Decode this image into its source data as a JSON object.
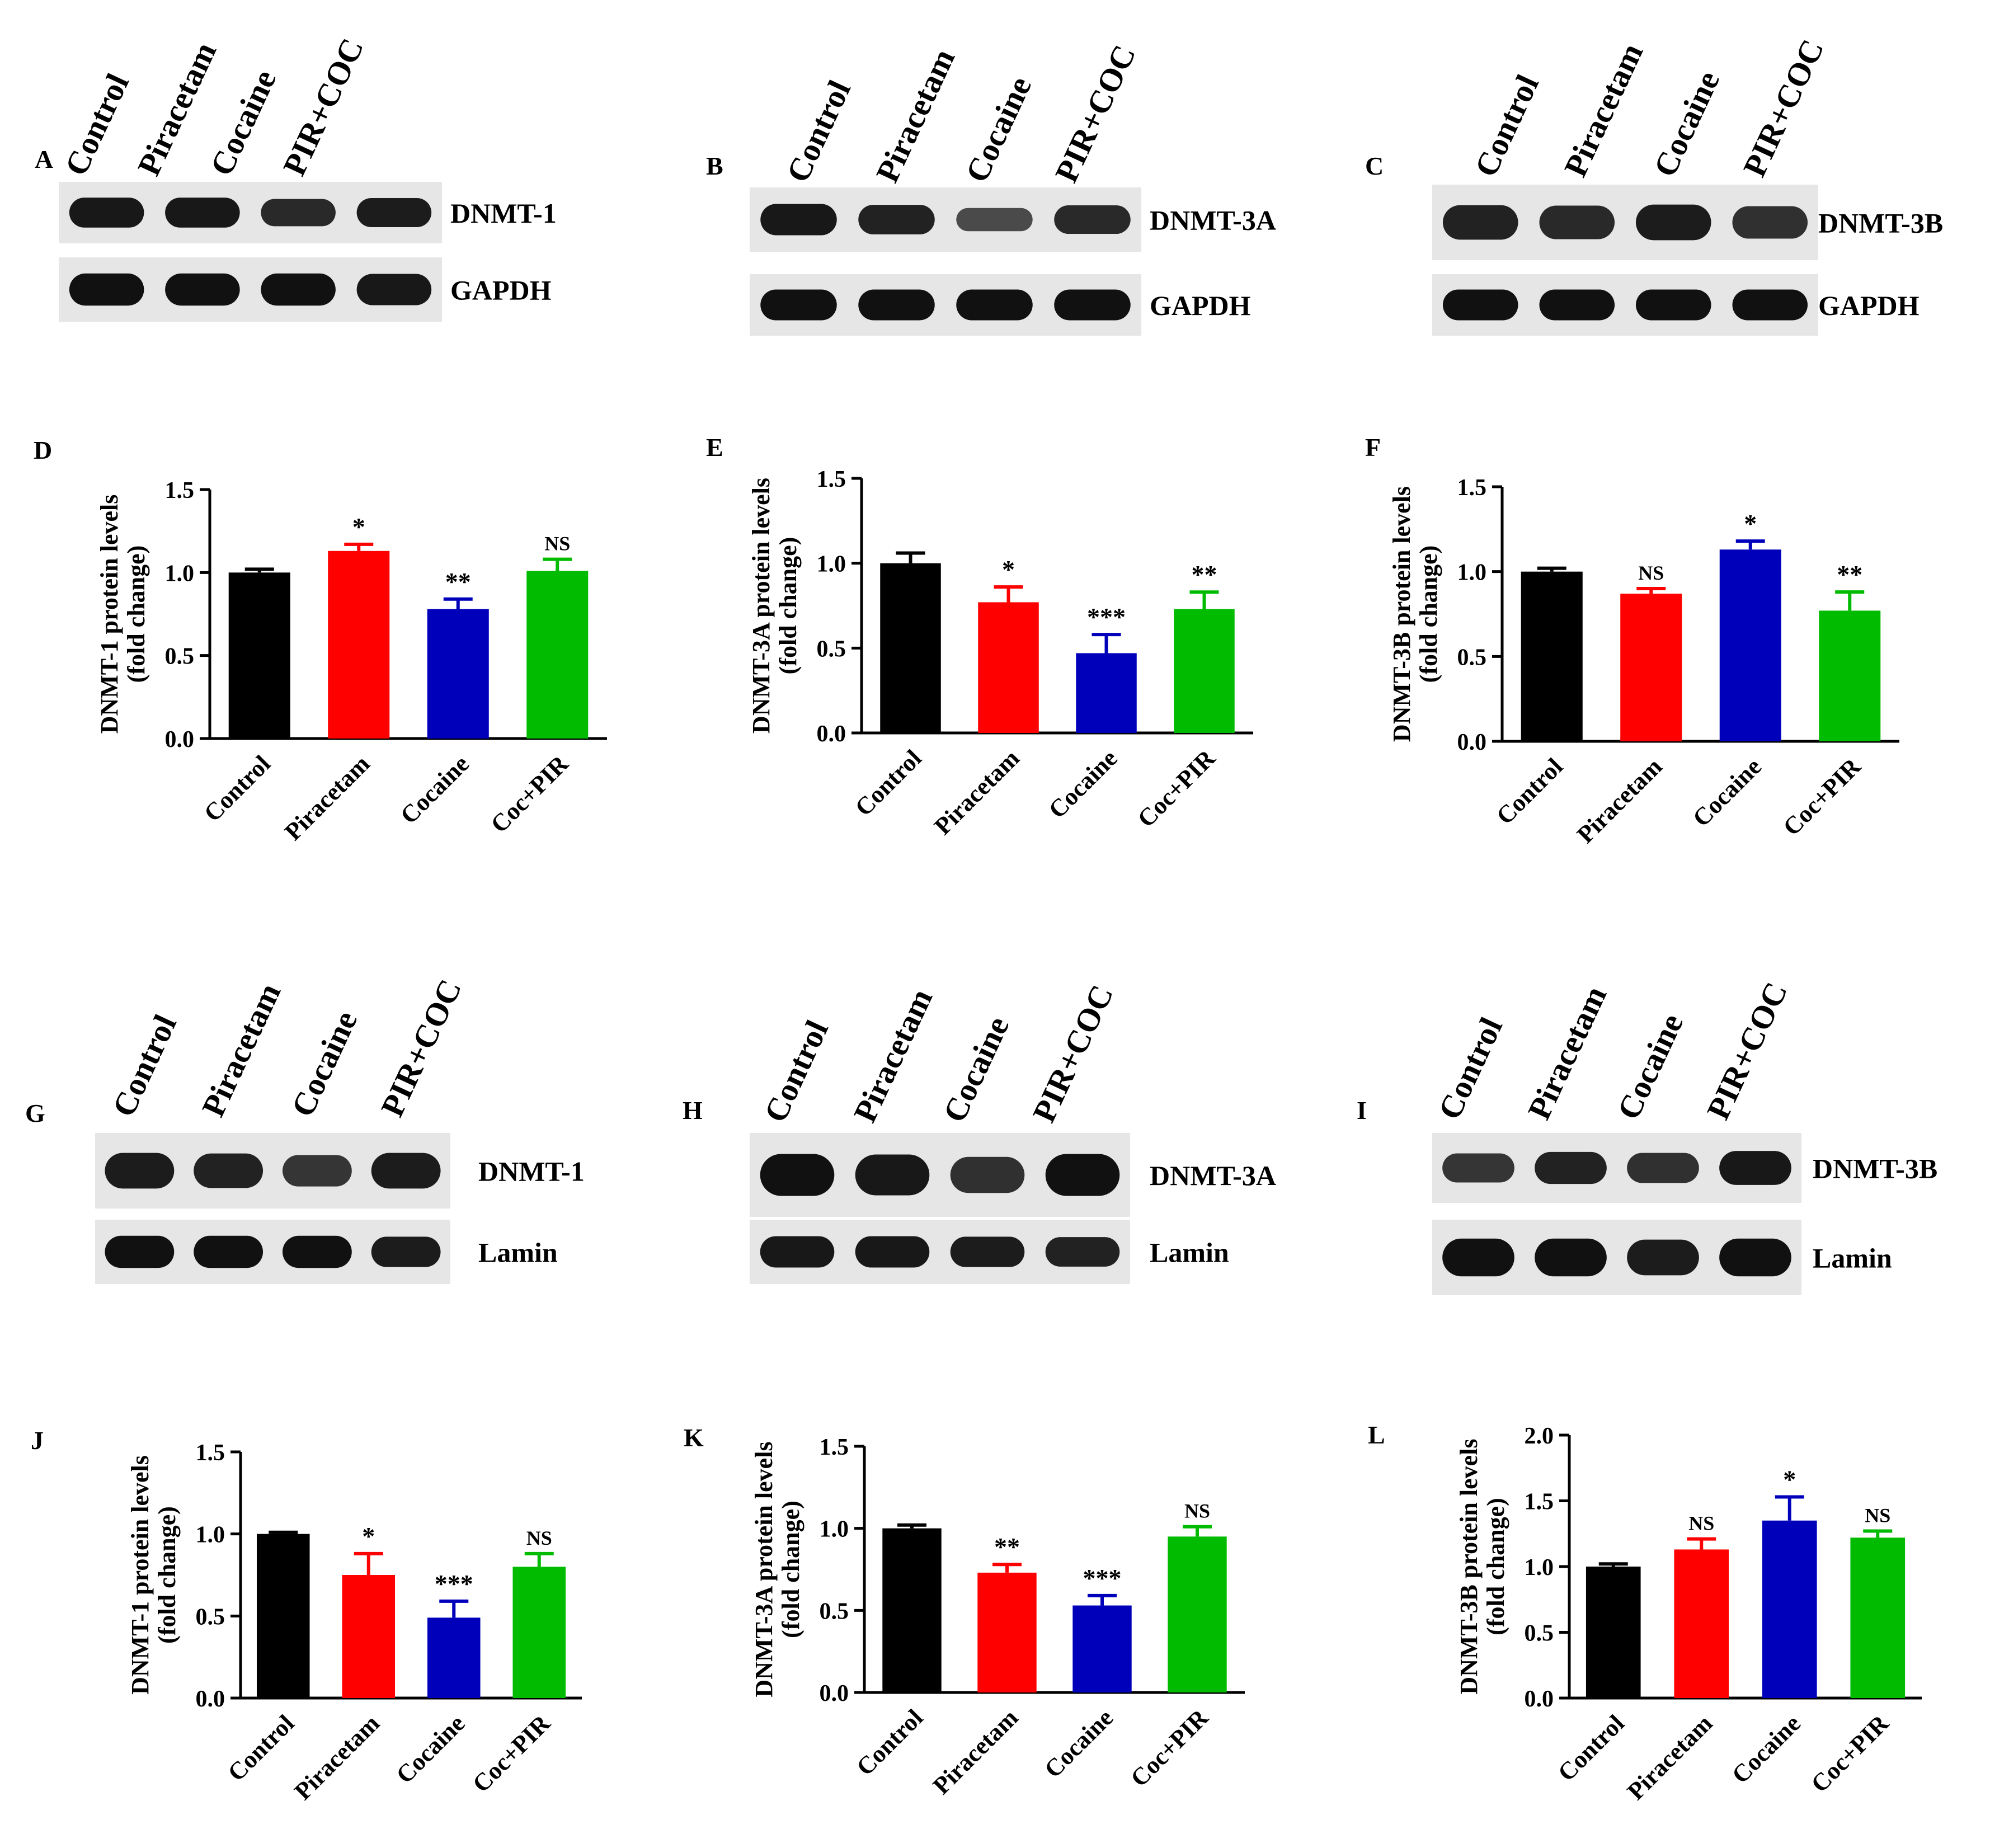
{
  "colors": {
    "control": "#000000",
    "piracetam": "#ff0000",
    "cocaine": "#0000bb",
    "combo": "#00bb00",
    "band": "#111111",
    "membrane": "#e6e6e6"
  },
  "blots": [
    {
      "panel": "A",
      "lanes": [
        "Control",
        "Piracetam",
        "Cocaine",
        "PIR+COC"
      ],
      "rows": [
        {
          "label": "DNMT-1",
          "intensity": [
            0.95,
            0.95,
            0.8,
            0.9
          ]
        },
        {
          "label": "GAPDH",
          "intensity": [
            1.0,
            1.0,
            1.0,
            0.95
          ]
        }
      ]
    },
    {
      "panel": "B",
      "lanes": [
        "Control",
        "Piracetam",
        "Cocaine",
        "PIR+COC"
      ],
      "rows": [
        {
          "label": "DNMT-3A",
          "intensity": [
            0.95,
            0.85,
            0.5,
            0.8
          ]
        },
        {
          "label": "GAPDH",
          "intensity": [
            1.0,
            1.0,
            1.0,
            1.0
          ]
        }
      ]
    },
    {
      "panel": "C",
      "lanes": [
        "Control",
        "Piracetam",
        "Cocaine",
        "PIR+COC"
      ],
      "rows": [
        {
          "label": "DNMT-3B",
          "intensity": [
            0.85,
            0.8,
            0.9,
            0.75
          ]
        },
        {
          "label": "GAPDH",
          "intensity": [
            1.0,
            1.0,
            1.0,
            1.0
          ]
        }
      ]
    },
    {
      "panel": "G",
      "lanes": [
        "Control",
        "Piracetam",
        "Cocaine",
        "PIR+COC"
      ],
      "rows": [
        {
          "label": "DNMT-1",
          "intensity": [
            0.9,
            0.85,
            0.7,
            0.9
          ]
        },
        {
          "label": "Lamin",
          "intensity": [
            1.0,
            1.0,
            1.0,
            0.9
          ]
        }
      ]
    },
    {
      "panel": "H",
      "lanes": [
        "Control",
        "Piracetam",
        "Cocaine",
        "PIR+COC"
      ],
      "rows": [
        {
          "label": "DNMT-3A",
          "intensity": [
            1.0,
            0.95,
            0.75,
            1.0
          ]
        },
        {
          "label": "Lamin",
          "intensity": [
            0.95,
            0.95,
            0.9,
            0.85
          ]
        }
      ]
    },
    {
      "panel": "I",
      "lanes": [
        "Control",
        "Piracetam",
        "Cocaine",
        "PIR+COC"
      ],
      "rows": [
        {
          "label": "DNMT-3B",
          "intensity": [
            0.7,
            0.85,
            0.75,
            0.95
          ]
        },
        {
          "label": "Lamin",
          "intensity": [
            1.0,
            1.0,
            0.9,
            1.0
          ]
        }
      ]
    }
  ],
  "chart_data": [
    {
      "panel": "D",
      "type": "bar",
      "categories": [
        "Control",
        "Piracetam",
        "Cocaine",
        "Coc+PIR"
      ],
      "values": [
        1.0,
        1.13,
        0.78,
        1.01
      ],
      "errors": [
        0.02,
        0.04,
        0.06,
        0.07
      ],
      "significance": [
        "",
        "*",
        "**",
        "NS"
      ],
      "ylabel": [
        "DNMT-1 protein levels",
        "(fold change)"
      ],
      "ylim": [
        0,
        1.5
      ],
      "yticks": [
        "0.0",
        "0.5",
        "1.0",
        "1.5"
      ]
    },
    {
      "panel": "E",
      "type": "bar",
      "categories": [
        "Control",
        "Piracetam",
        "Cocaine",
        "Coc+PIR"
      ],
      "values": [
        1.0,
        0.77,
        0.47,
        0.73
      ],
      "errors": [
        0.06,
        0.09,
        0.11,
        0.1
      ],
      "significance": [
        "",
        "*",
        "***",
        "**"
      ],
      "ylabel": [
        "DNMT-3A protein levels",
        "(fold change)"
      ],
      "ylim": [
        0,
        1.5
      ],
      "yticks": [
        "0.0",
        "0.5",
        "1.0",
        "1.5"
      ]
    },
    {
      "panel": "F",
      "type": "bar",
      "categories": [
        "Control",
        "Piracetam",
        "Cocaine",
        "Coc+PIR"
      ],
      "values": [
        1.0,
        0.87,
        1.13,
        0.77
      ],
      "errors": [
        0.02,
        0.03,
        0.05,
        0.11
      ],
      "significance": [
        "",
        "NS",
        "*",
        "**"
      ],
      "ylabel": [
        "DNMT-3B protein levels",
        "(fold change)"
      ],
      "ylim": [
        0,
        1.5
      ],
      "yticks": [
        "0.0",
        "0.5",
        "1.0",
        "1.5"
      ]
    },
    {
      "panel": "J",
      "type": "bar",
      "categories": [
        "Control",
        "Piracetam",
        "Cocaine",
        "Coc+PIR"
      ],
      "values": [
        1.0,
        0.75,
        0.49,
        0.8
      ],
      "errors": [
        0.01,
        0.13,
        0.1,
        0.08
      ],
      "significance": [
        "",
        "*",
        "***",
        "NS"
      ],
      "ylabel": [
        "DNMT-1 protein levels",
        "(fold change)"
      ],
      "ylim": [
        0,
        1.5
      ],
      "yticks": [
        "0.0",
        "0.5",
        "1.0",
        "1.5"
      ]
    },
    {
      "panel": "K",
      "type": "bar",
      "categories": [
        "Control",
        "Piracetam",
        "Cocaine",
        "Coc+PIR"
      ],
      "values": [
        1.0,
        0.73,
        0.53,
        0.95
      ],
      "errors": [
        0.02,
        0.05,
        0.06,
        0.06
      ],
      "significance": [
        "",
        "**",
        "***",
        "NS"
      ],
      "ylabel": [
        "DNMT-3A protein levels",
        "(fold change)"
      ],
      "ylim": [
        0,
        1.5
      ],
      "yticks": [
        "0.0",
        "0.5",
        "1.0",
        "1.5"
      ]
    },
    {
      "panel": "L",
      "type": "bar",
      "categories": [
        "Control",
        "Piracetam",
        "Cocaine",
        "Coc+PIR"
      ],
      "values": [
        1.0,
        1.13,
        1.35,
        1.22
      ],
      "errors": [
        0.02,
        0.08,
        0.18,
        0.05
      ],
      "significance": [
        "",
        "NS",
        "*",
        "NS"
      ],
      "ylabel": [
        "DNMT-3B protein levels",
        "(fold change)"
      ],
      "ylim": [
        0,
        2.0
      ],
      "yticks": [
        "0.0",
        "0.5",
        "1.0",
        "1.5",
        "2.0"
      ]
    }
  ]
}
